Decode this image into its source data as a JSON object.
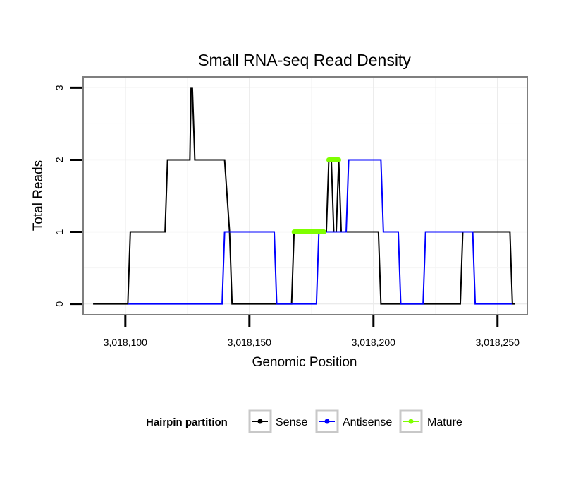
{
  "chart_data": {
    "type": "line",
    "title": "Small RNA-seq Read Density",
    "xlabel": "Genomic Position",
    "ylabel": "Total Reads",
    "xlim": [
      3018083,
      3018262
    ],
    "ylim": [
      -0.15,
      3.15
    ],
    "x_ticks": [
      3018100,
      3018150,
      3018200,
      3018250
    ],
    "x_tick_labels": [
      "3,018,100",
      "3,018,150",
      "3,018,200",
      "3,018,250"
    ],
    "y_ticks": [
      0,
      1,
      2,
      3
    ],
    "y_tick_labels": [
      "0",
      "1",
      "2",
      "3"
    ],
    "grid": true,
    "legend": {
      "title": "Hairpin partition",
      "position": "bottom",
      "entries": [
        "Sense",
        "Antisense",
        "Mature"
      ]
    },
    "series": [
      {
        "name": "Sense",
        "color": "#000000",
        "points": [
          [
            3018087,
            0
          ],
          [
            3018101,
            0
          ],
          [
            3018102,
            1
          ],
          [
            3018116,
            1
          ],
          [
            3018117,
            2
          ],
          [
            3018126,
            2
          ],
          [
            3018126.5,
            3
          ],
          [
            3018127,
            3
          ],
          [
            3018128,
            2
          ],
          [
            3018140,
            2
          ],
          [
            3018142,
            1
          ],
          [
            3018143,
            0
          ],
          [
            3018167,
            0
          ],
          [
            3018168,
            1
          ],
          [
            3018181,
            1
          ],
          [
            3018182,
            2
          ],
          [
            3018183,
            2
          ],
          [
            3018184,
            1
          ],
          [
            3018185,
            1
          ],
          [
            3018186,
            2
          ],
          [
            3018187,
            1
          ],
          [
            3018202,
            1
          ],
          [
            3018203,
            0
          ],
          [
            3018235,
            0
          ],
          [
            3018236,
            1
          ],
          [
            3018255,
            1
          ],
          [
            3018256,
            0
          ],
          [
            3018257,
            0
          ]
        ]
      },
      {
        "name": "Antisense",
        "color": "#0000ff",
        "points": [
          [
            3018101,
            0
          ],
          [
            3018139,
            0
          ],
          [
            3018140,
            1
          ],
          [
            3018160,
            1
          ],
          [
            3018161,
            0
          ],
          [
            3018177,
            0
          ],
          [
            3018178,
            1
          ],
          [
            3018189,
            1
          ],
          [
            3018190,
            2
          ],
          [
            3018203,
            2
          ],
          [
            3018204,
            1
          ],
          [
            3018210,
            1
          ],
          [
            3018211,
            0
          ],
          [
            3018220,
            0
          ],
          [
            3018221,
            1
          ],
          [
            3018237,
            1
          ],
          [
            3018238,
            1
          ],
          [
            3018240,
            1
          ],
          [
            3018241,
            0
          ],
          [
            3018256,
            0
          ]
        ]
      },
      {
        "name": "Mature",
        "color": "#7fff00",
        "segments": [
          [
            [
              3018168,
              1
            ],
            [
              3018180,
              1
            ]
          ],
          [
            [
              3018182,
              2
            ],
            [
              3018186,
              2
            ]
          ]
        ]
      }
    ]
  }
}
